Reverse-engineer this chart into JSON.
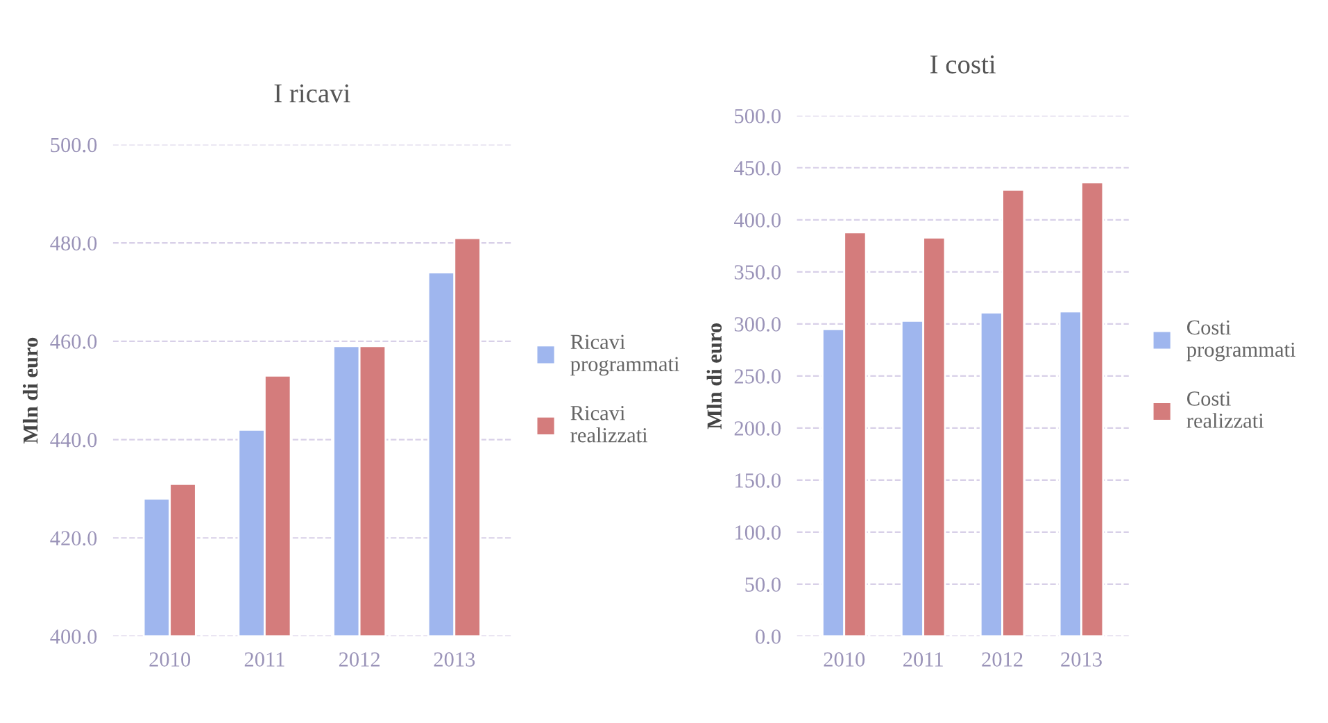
{
  "chart_data": [
    {
      "type": "bar",
      "title": "I ricavi",
      "ylabel": "Mln di euro",
      "categories": [
        "2010",
        "2011",
        "2012",
        "2013"
      ],
      "series": [
        {
          "name": "Ricavi programmati",
          "color": "#9fb6ee",
          "values": [
            428,
            442,
            459,
            474
          ]
        },
        {
          "name": "Ricavi realizzati",
          "color": "#d47c7c",
          "values": [
            431,
            453,
            459,
            481
          ]
        }
      ],
      "ylim": [
        400,
        500
      ],
      "yticks": [
        {
          "value": 400,
          "label": "400.0"
        },
        {
          "value": 420,
          "label": "420.0"
        },
        {
          "value": 440,
          "label": "440.0"
        },
        {
          "value": 460,
          "label": "460.0"
        },
        {
          "value": 480,
          "label": "480.0"
        },
        {
          "value": 500,
          "label": "500.0"
        }
      ],
      "grid": "y",
      "legend": "right"
    },
    {
      "type": "bar",
      "title": "I costi",
      "ylabel": "Mln di euro",
      "categories": [
        "2010",
        "2011",
        "2012",
        "2013"
      ],
      "series": [
        {
          "name": "Costi programmati",
          "color": "#9fb6ee",
          "values": [
            295,
            303,
            311,
            312
          ]
        },
        {
          "name": "Costi realizzati",
          "color": "#d47c7c",
          "values": [
            388,
            383,
            429,
            436
          ]
        }
      ],
      "ylim": [
        0,
        500
      ],
      "yticks": [
        {
          "value": 0,
          "label": "0.0"
        },
        {
          "value": 50,
          "label": "50.0"
        },
        {
          "value": 100,
          "label": "100.0"
        },
        {
          "value": 150,
          "label": "150.0"
        },
        {
          "value": 200,
          "label": "200.0"
        },
        {
          "value": 250,
          "label": "250.0"
        },
        {
          "value": 300,
          "label": "300.0"
        },
        {
          "value": 350,
          "label": "350.0"
        },
        {
          "value": 400,
          "label": "400.0"
        },
        {
          "value": 450,
          "label": "450.0"
        },
        {
          "value": 500,
          "label": "500.0"
        }
      ],
      "grid": "y",
      "legend": "right"
    }
  ]
}
